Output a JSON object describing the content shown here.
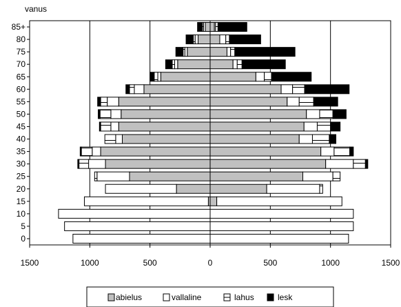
{
  "chart_data": {
    "type": "bar",
    "orientation": "horizontal-diverging",
    "ylabel": "vanus",
    "categories": [
      "0",
      "5",
      "10",
      "15",
      "20",
      "25",
      "30",
      "35",
      "40",
      "45",
      "50",
      "55",
      "60",
      "65",
      "70",
      "75",
      "80",
      "85+"
    ],
    "xlim": [
      -1500,
      1500
    ],
    "xticks": [
      -1500,
      -1000,
      -500,
      0,
      500,
      1000,
      1500
    ],
    "xtick_labels": [
      "1500",
      "1000",
      "500",
      "0",
      "500",
      "1000",
      "1500"
    ],
    "grid": "vertical",
    "legend_position": "bottom",
    "series": [
      {
        "name": "abielus",
        "color": "#c0c0c0",
        "pattern": "solid",
        "left": [
          0,
          0,
          0,
          15,
          280,
          670,
          870,
          910,
          730,
          760,
          740,
          760,
          550,
          410,
          270,
          190,
          100,
          40
        ],
        "right": [
          0,
          0,
          0,
          55,
          470,
          770,
          960,
          920,
          740,
          780,
          800,
          640,
          590,
          380,
          190,
          140,
          80,
          35
        ]
      },
      {
        "name": "vallaline",
        "color": "#ffffff",
        "pattern": "solid",
        "left": [
          1140,
          1210,
          1260,
          1030,
          590,
          270,
          140,
          70,
          55,
          65,
          85,
          95,
          80,
          25,
          25,
          20,
          25,
          15
        ]
      },
      {
        "name": "lahus",
        "color": "#ffffff",
        "pattern": "hline",
        "left": [
          0,
          0,
          0,
          0,
          0,
          20,
          80,
          90,
          90,
          85,
          90,
          55,
          40,
          30,
          20,
          15,
          15,
          10
        ],
        "right": [
          0,
          0,
          0,
          0,
          25,
          60,
          100,
          130,
          140,
          110,
          110,
          120,
          100,
          60,
          40,
          35,
          30,
          20
        ]
      },
      {
        "name": "lesk",
        "color": "#000000",
        "pattern": "solid",
        "left": [
          0,
          0,
          0,
          0,
          0,
          0,
          10,
          10,
          0,
          10,
          15,
          25,
          30,
          35,
          55,
          60,
          60,
          40
        ],
        "right": [
          0,
          0,
          0,
          0,
          0,
          0,
          20,
          30,
          55,
          80,
          110,
          200,
          370,
          330,
          360,
          500,
          260,
          240
        ]
      }
    ],
    "right_extra": {
      "name": "vallaline",
      "right": [
        1150,
        1190,
        1190,
        1040,
        440,
        250,
        230,
        110,
        110,
        110,
        110,
        100,
        95,
        70,
        35,
        30,
        50,
        10
      ]
    }
  }
}
